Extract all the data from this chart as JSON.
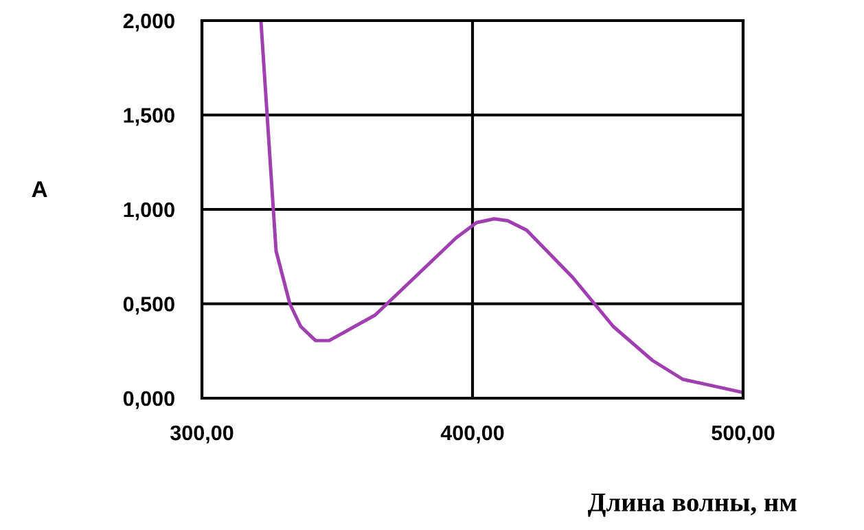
{
  "chart_data": {
    "type": "line",
    "xlabel": "Длина волны, нм",
    "ylabel": "A",
    "x": [
      321.8,
      327.4,
      332.5,
      336.5,
      342,
      347,
      364,
      394,
      401.5,
      408,
      413,
      420,
      437,
      452,
      466.5,
      477.7,
      500
    ],
    "series": [
      {
        "color": "#a040b0",
        "values": [
          2.0,
          0.78,
          0.5,
          0.38,
          0.305,
          0.305,
          0.44,
          0.85,
          0.93,
          0.95,
          0.94,
          0.89,
          0.64,
          0.38,
          0.2,
          0.1,
          0.03
        ]
      }
    ],
    "xlim": [
      300,
      500
    ],
    "ylim": [
      0,
      2
    ],
    "xticks": [
      {
        "value": 300,
        "label": "300,00"
      },
      {
        "value": 400,
        "label": "400,00"
      },
      {
        "value": 500,
        "label": "500,00"
      }
    ],
    "yticks": [
      {
        "value": 0,
        "label": "0,000"
      },
      {
        "value": 0.5,
        "label": "0,500"
      },
      {
        "value": 1,
        "label": "1,000"
      },
      {
        "value": 1.5,
        "label": "1,500"
      },
      {
        "value": 2,
        "label": "2,000"
      }
    ],
    "grid": true,
    "marker": "none",
    "line_style": "solid"
  }
}
